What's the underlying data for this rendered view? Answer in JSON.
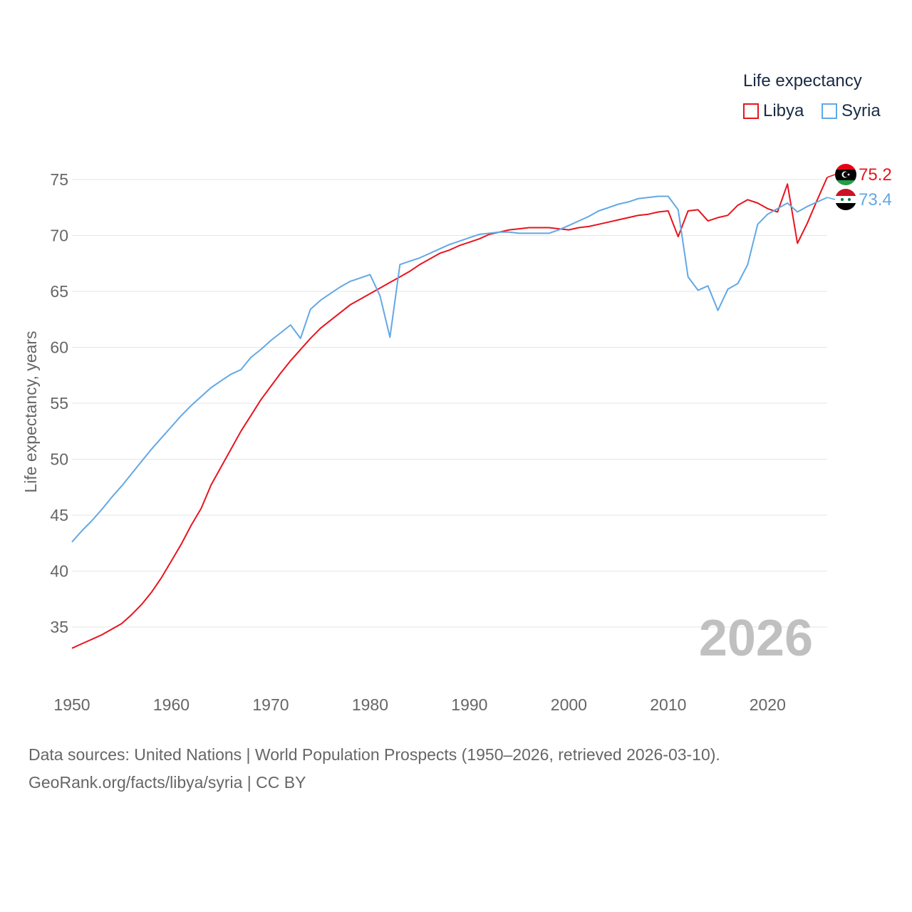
{
  "colors": {
    "libya": "#e8141e",
    "syria": "#62a8e5",
    "grid": "#e6e6e6",
    "axis_text": "#666666",
    "watermark": "#c0c0c0"
  },
  "legend": {
    "title": "Life expectancy",
    "items": [
      {
        "key": "libya",
        "label": "Libya"
      },
      {
        "key": "syria",
        "label": "Syria"
      }
    ]
  },
  "year_watermark": "2026",
  "source": {
    "line1": "Data sources: United Nations | World Population Prospects (1950–2026, retrieved 2026-03-10).",
    "line2": "GeoRank.org/facts/libya/syria | CC BY"
  },
  "chart_data": {
    "type": "line",
    "title": "Life expectancy",
    "xlabel": "",
    "ylabel": "Life expectancy, years",
    "xlim": [
      1950,
      2026
    ],
    "ylim": [
      32,
      77
    ],
    "x_ticks": [
      1950,
      1960,
      1970,
      1980,
      1990,
      2000,
      2010,
      2020
    ],
    "y_ticks": [
      35,
      40,
      45,
      50,
      55,
      60,
      65,
      70,
      75
    ],
    "grid": true,
    "x": [
      1950,
      1951,
      1952,
      1953,
      1954,
      1955,
      1956,
      1957,
      1958,
      1959,
      1960,
      1961,
      1962,
      1963,
      1964,
      1965,
      1966,
      1967,
      1968,
      1969,
      1970,
      1971,
      1972,
      1973,
      1974,
      1975,
      1976,
      1977,
      1978,
      1979,
      1980,
      1981,
      1982,
      1983,
      1984,
      1985,
      1986,
      1987,
      1988,
      1989,
      1990,
      1991,
      1992,
      1993,
      1994,
      1995,
      1996,
      1997,
      1998,
      1999,
      2000,
      2001,
      2002,
      2003,
      2004,
      2005,
      2006,
      2007,
      2008,
      2009,
      2010,
      2011,
      2012,
      2013,
      2014,
      2015,
      2016,
      2017,
      2018,
      2019,
      2020,
      2021,
      2022,
      2023,
      2024,
      2025,
      2026
    ],
    "series": [
      {
        "name": "Libya",
        "key": "libya",
        "end_label": "75.2",
        "values": [
          33.1,
          33.5,
          33.9,
          34.3,
          34.8,
          35.3,
          36.1,
          37.0,
          38.1,
          39.4,
          40.9,
          42.4,
          44.1,
          45.6,
          47.7,
          49.3,
          50.9,
          52.5,
          53.9,
          55.3,
          56.5,
          57.7,
          58.8,
          59.8,
          60.8,
          61.7,
          62.4,
          63.1,
          63.8,
          64.3,
          64.8,
          65.3,
          65.8,
          66.3,
          66.8,
          67.4,
          67.9,
          68.4,
          68.7,
          69.1,
          69.4,
          69.7,
          70.1,
          70.3,
          70.5,
          70.6,
          70.7,
          70.7,
          70.7,
          70.6,
          70.5,
          70.7,
          70.8,
          71.0,
          71.2,
          71.4,
          71.6,
          71.8,
          71.9,
          72.1,
          72.2,
          69.9,
          72.2,
          72.3,
          71.3,
          71.6,
          71.8,
          72.7,
          73.2,
          72.9,
          72.4,
          72.1,
          74.6,
          69.3,
          71.1,
          73.2,
          75.2
        ]
      },
      {
        "name": "Syria",
        "key": "syria",
        "end_label": "73.4",
        "values": [
          42.6,
          43.6,
          44.5,
          45.5,
          46.6,
          47.6,
          48.7,
          49.8,
          50.9,
          51.9,
          52.9,
          53.9,
          54.8,
          55.6,
          56.4,
          57.0,
          57.6,
          58.0,
          59.1,
          59.8,
          60.6,
          61.3,
          62.0,
          60.8,
          63.4,
          64.2,
          64.8,
          65.4,
          65.9,
          66.2,
          66.5,
          64.6,
          60.9,
          67.4,
          67.7,
          68.0,
          68.4,
          68.8,
          69.2,
          69.5,
          69.8,
          70.1,
          70.2,
          70.3,
          70.3,
          70.2,
          70.2,
          70.2,
          70.2,
          70.5,
          70.9,
          71.3,
          71.7,
          72.2,
          72.5,
          72.8,
          73.0,
          73.3,
          73.4,
          73.5,
          73.5,
          72.3,
          66.3,
          65.1,
          65.5,
          63.3,
          65.2,
          65.7,
          67.4,
          71.0,
          71.9,
          72.4,
          72.9,
          72.1,
          72.6,
          73.0,
          73.4
        ]
      }
    ]
  }
}
